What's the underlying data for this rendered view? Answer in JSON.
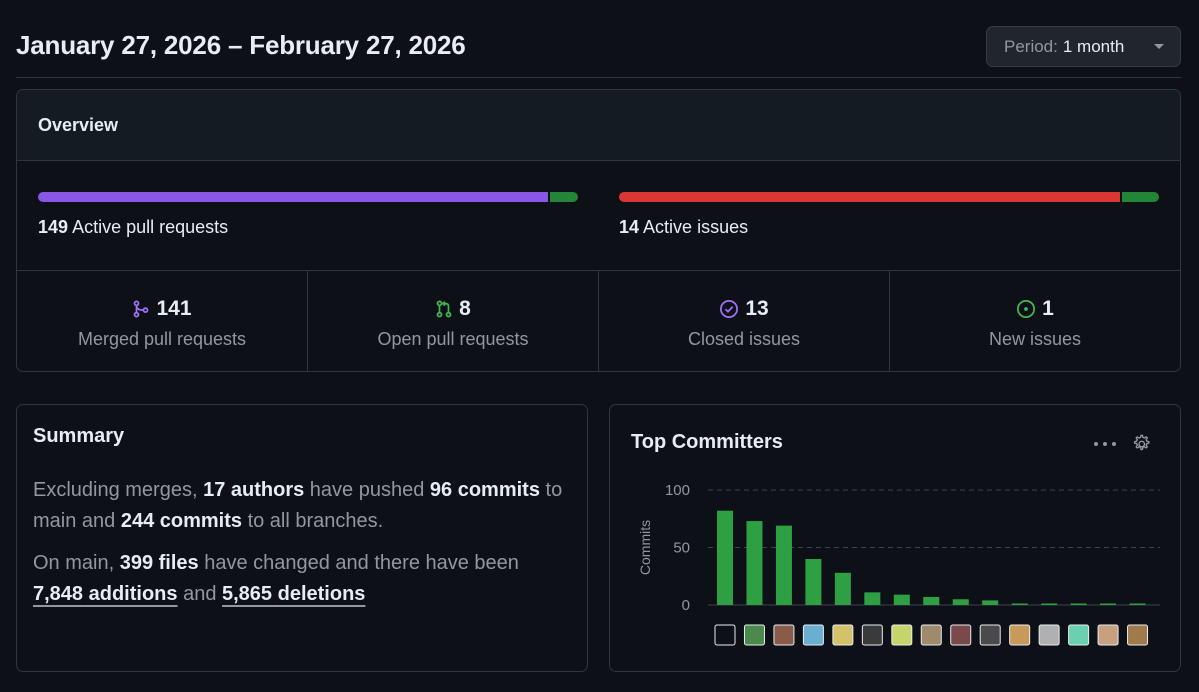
{
  "header": {
    "date_range": "January 27, 2026 – February 27, 2026",
    "period_prefix": "Period:",
    "period_value": "1 month"
  },
  "overview": {
    "title": "Overview",
    "pull_requests": {
      "count": "149",
      "label": "Active pull requests",
      "merged_fraction": 0.945,
      "colors": {
        "merged": "#8957e5",
        "open": "#238636"
      }
    },
    "issues": {
      "count": "14",
      "label": "Active issues",
      "closed_fraction": 0.928,
      "colors": {
        "closed": "#da3633",
        "new": "#238636"
      }
    },
    "stats": [
      {
        "icon": "merge-icon",
        "value": "141",
        "label": "Merged pull requests",
        "color": "#a371f7"
      },
      {
        "icon": "pull-request-icon",
        "value": "8",
        "label": "Open pull requests",
        "color": "#3fb950"
      },
      {
        "icon": "check-circle-icon",
        "value": "13",
        "label": "Closed issues",
        "color": "#a371f7"
      },
      {
        "icon": "issue-opened-icon",
        "value": "1",
        "label": "New issues",
        "color": "#3fb950"
      }
    ]
  },
  "summary": {
    "title": "Summary",
    "p1": {
      "t1": "Excluding merges, ",
      "authors": "17 authors",
      "t2": " have pushed ",
      "commits_main": "96 commits",
      "t3": " to main and ",
      "commits_all": "244 commits",
      "t4": " to all branches."
    },
    "p2": {
      "t1": "On main, ",
      "files": "399 files",
      "t2": " have changed and there have been ",
      "additions_num": "7,848",
      "additions_word": " additions",
      "t3": " and ",
      "deletions_num": "5,865",
      "deletions_word": " deletions"
    }
  },
  "committers": {
    "title": "Top Committers",
    "chart_data": {
      "type": "bar",
      "ylabel": "Commits",
      "ylim": [
        0,
        100
      ],
      "yticks": [
        0,
        50,
        100
      ],
      "grid": true,
      "color": "#2ea043",
      "values": [
        82,
        73,
        69,
        40,
        28,
        11,
        9,
        7,
        5,
        4,
        1,
        1,
        1,
        1,
        1
      ],
      "categories": [
        "c1",
        "c2",
        "c3",
        "c4",
        "c5",
        "c6",
        "c7",
        "c8",
        "c9",
        "c10",
        "c11",
        "c12",
        "c13",
        "c14",
        "c15"
      ]
    },
    "avatars": [
      "#0d1117",
      "#4a8a4a",
      "#8a5a4a",
      "#6aaed0",
      "#d4c26a",
      "#3a3a3a",
      "#c8d46a",
      "#a08a6a",
      "#7a4a4a",
      "#4a4a4a",
      "#c89a5a",
      "#b0b0b0",
      "#6ad0b0",
      "#c8a080",
      "#a07a4a"
    ]
  }
}
